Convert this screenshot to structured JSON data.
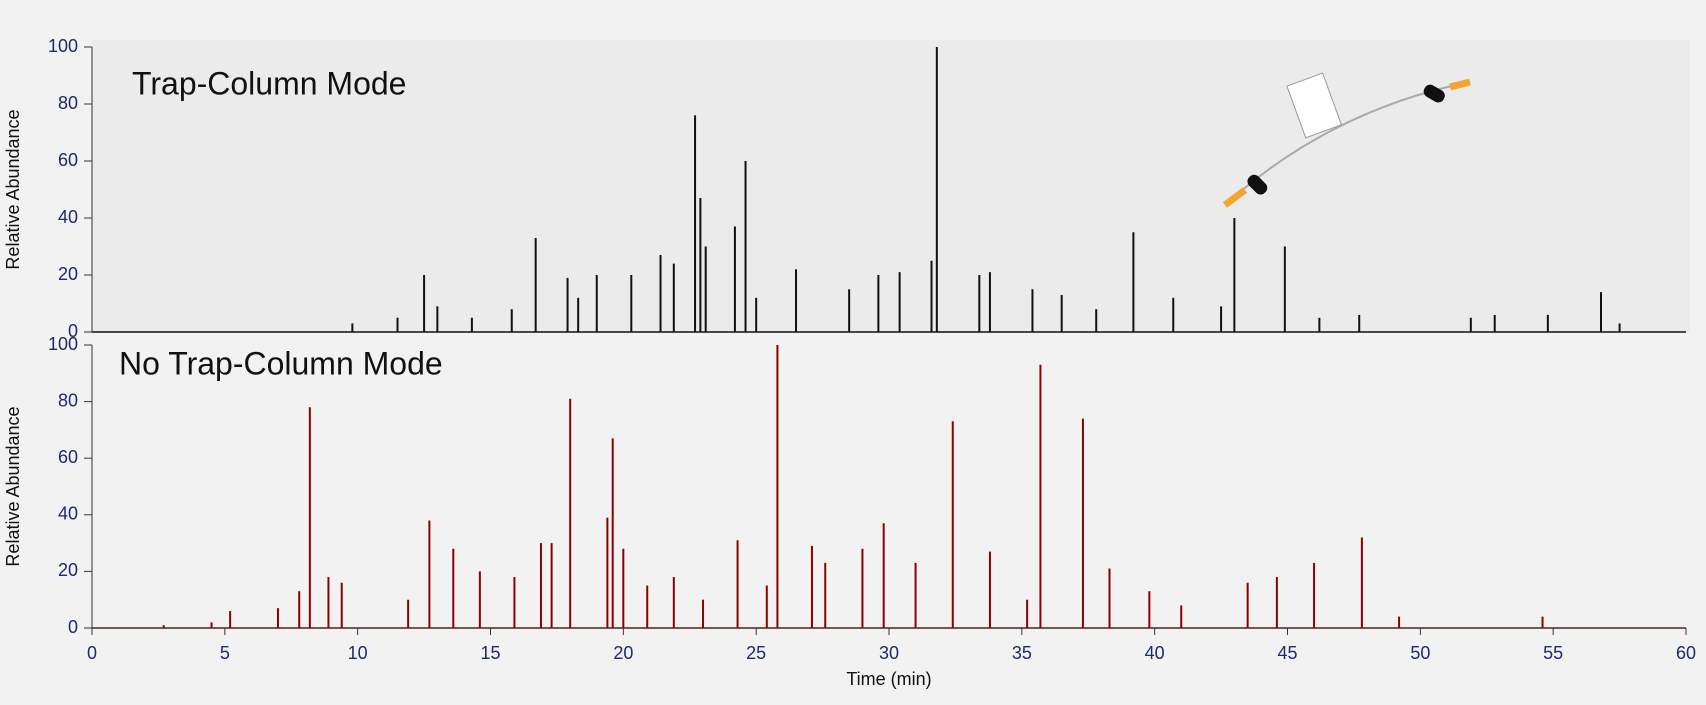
{
  "chart_data": [
    {
      "type": "chromatogram",
      "annotation": "Trap-Column Mode",
      "ylabel": "Relative Abundance",
      "color": "#111111",
      "background": "#ebebeb",
      "xlim": [
        0,
        60
      ],
      "ylim": [
        0,
        100
      ],
      "yticks": [
        0,
        20,
        40,
        60,
        80,
        100
      ],
      "x": [
        9.8,
        11.5,
        12.5,
        13.0,
        14.3,
        15.8,
        16.7,
        17.9,
        18.3,
        19.0,
        20.3,
        21.4,
        21.9,
        22.7,
        22.9,
        23.1,
        24.2,
        24.6,
        25.0,
        26.5,
        28.5,
        29.6,
        30.4,
        31.6,
        31.8,
        33.4,
        33.8,
        35.4,
        36.5,
        37.8,
        39.2,
        40.7,
        42.5,
        43.0,
        44.9,
        46.2,
        47.7,
        51.9,
        52.8,
        54.8,
        56.8,
        57.5
      ],
      "values": [
        3,
        5,
        20,
        9,
        5,
        8,
        33,
        19,
        12,
        20,
        20,
        27,
        24,
        76,
        47,
        30,
        37,
        60,
        12,
        22,
        15,
        20,
        21,
        25,
        100,
        20,
        21,
        15,
        13,
        8,
        35,
        12,
        9,
        40,
        30,
        5,
        6,
        5,
        6,
        6,
        14,
        3
      ]
    },
    {
      "type": "chromatogram",
      "annotation": "No Trap-Column Mode",
      "ylabel": "Relative Abundance",
      "xlabel": "Time (min)",
      "color": "#8b0000",
      "background": "#f2f2f2",
      "xlim": [
        0,
        60
      ],
      "ylim": [
        0,
        100
      ],
      "yticks": [
        0,
        20,
        40,
        60,
        80,
        100
      ],
      "xticks": [
        0,
        5,
        10,
        15,
        20,
        25,
        30,
        35,
        40,
        45,
        50,
        55,
        60
      ],
      "x": [
        2.7,
        4.5,
        5.2,
        7.0,
        7.8,
        8.2,
        8.9,
        9.4,
        11.9,
        12.7,
        13.6,
        14.6,
        15.9,
        16.9,
        17.3,
        18.0,
        19.4,
        19.6,
        20.0,
        20.9,
        21.9,
        23.0,
        24.3,
        25.4,
        25.8,
        27.1,
        27.6,
        29.0,
        29.8,
        31.0,
        32.4,
        33.8,
        35.2,
        35.7,
        37.3,
        38.3,
        39.8,
        41.0,
        43.5,
        44.6,
        46.0,
        47.8,
        49.2,
        54.6
      ],
      "values": [
        1,
        2,
        6,
        7,
        13,
        78,
        18,
        16,
        10,
        38,
        28,
        20,
        18,
        30,
        30,
        81,
        39,
        67,
        28,
        15,
        18,
        10,
        31,
        15,
        100,
        29,
        23,
        28,
        37,
        23,
        73,
        27,
        10,
        93,
        74,
        21,
        13,
        8,
        16,
        18,
        23,
        32,
        4,
        4
      ]
    }
  ]
}
